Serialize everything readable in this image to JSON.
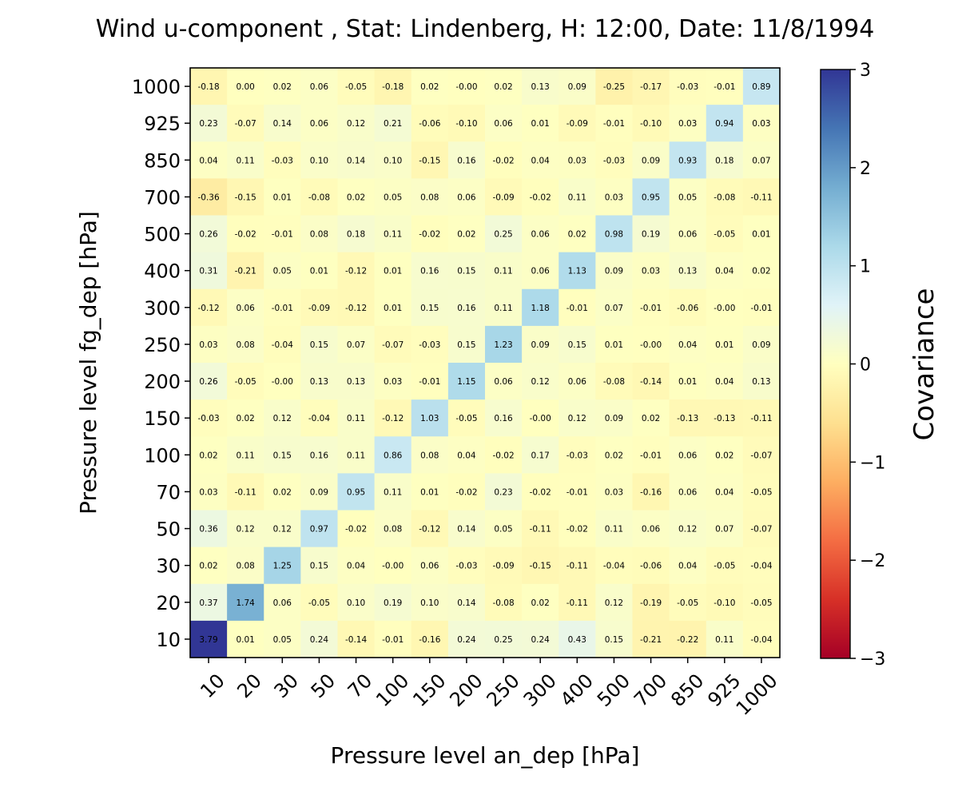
{
  "chart_data": {
    "type": "heatmap",
    "title": "Wind u-component , Stat: Lindenberg, H: 12:00, Date: 11/8/1994",
    "xlabel": "Pressure level an_dep [hPa]",
    "ylabel": "Pressure level fg_dep [hPa]",
    "x_categories": [
      "10",
      "20",
      "30",
      "50",
      "70",
      "100",
      "150",
      "200",
      "250",
      "300",
      "400",
      "500",
      "700",
      "850",
      "925",
      "1000"
    ],
    "y_categories": [
      "1000",
      "925",
      "850",
      "700",
      "500",
      "400",
      "300",
      "250",
      "200",
      "150",
      "100",
      "70",
      "50",
      "30",
      "20",
      "10"
    ],
    "values": [
      [
        "-0.18",
        "0.00",
        "0.02",
        "0.06",
        "-0.05",
        "-0.18",
        "0.02",
        "-0.00",
        "0.02",
        "0.13",
        "0.09",
        "-0.25",
        "-0.17",
        "-0.03",
        "-0.01",
        "0.89"
      ],
      [
        "0.23",
        "-0.07",
        "0.14",
        "0.06",
        "0.12",
        "0.21",
        "-0.06",
        "-0.10",
        "0.06",
        "0.01",
        "-0.09",
        "-0.01",
        "-0.10",
        "0.03",
        "0.94",
        "0.03"
      ],
      [
        "0.04",
        "0.11",
        "-0.03",
        "0.10",
        "0.14",
        "0.10",
        "-0.15",
        "0.16",
        "-0.02",
        "0.04",
        "0.03",
        "-0.03",
        "0.09",
        "0.93",
        "0.18",
        "0.07"
      ],
      [
        "-0.36",
        "-0.15",
        "0.01",
        "-0.08",
        "0.02",
        "0.05",
        "0.08",
        "0.06",
        "-0.09",
        "-0.02",
        "0.11",
        "0.03",
        "0.95",
        "0.05",
        "-0.08",
        "-0.11"
      ],
      [
        "0.26",
        "-0.02",
        "-0.01",
        "0.08",
        "0.18",
        "0.11",
        "-0.02",
        "0.02",
        "0.25",
        "0.06",
        "0.02",
        "0.98",
        "0.19",
        "0.06",
        "-0.05",
        "0.01"
      ],
      [
        "0.31",
        "-0.21",
        "0.05",
        "0.01",
        "-0.12",
        "0.01",
        "0.16",
        "0.15",
        "0.11",
        "0.06",
        "1.13",
        "0.09",
        "0.03",
        "0.13",
        "0.04",
        "0.02"
      ],
      [
        "-0.12",
        "0.06",
        "-0.01",
        "-0.09",
        "-0.12",
        "0.01",
        "0.15",
        "0.16",
        "0.11",
        "1.18",
        "-0.01",
        "0.07",
        "-0.01",
        "-0.06",
        "-0.00",
        "-0.01"
      ],
      [
        "0.03",
        "0.08",
        "-0.04",
        "0.15",
        "0.07",
        "-0.07",
        "-0.03",
        "0.15",
        "1.23",
        "0.09",
        "0.15",
        "0.01",
        "-0.00",
        "0.04",
        "0.01",
        "0.09"
      ],
      [
        "0.26",
        "-0.05",
        "-0.00",
        "0.13",
        "0.13",
        "0.03",
        "-0.01",
        "1.15",
        "0.06",
        "0.12",
        "0.06",
        "-0.08",
        "-0.14",
        "0.01",
        "0.04",
        "0.13"
      ],
      [
        "-0.03",
        "0.02",
        "0.12",
        "-0.04",
        "0.11",
        "-0.12",
        "1.03",
        "-0.05",
        "0.16",
        "-0.00",
        "0.12",
        "0.09",
        "0.02",
        "-0.13",
        "-0.13",
        "-0.11"
      ],
      [
        "0.02",
        "0.11",
        "0.15",
        "0.16",
        "0.11",
        "0.86",
        "0.08",
        "0.04",
        "-0.02",
        "0.17",
        "-0.03",
        "0.02",
        "-0.01",
        "0.06",
        "0.02",
        "-0.07"
      ],
      [
        "0.03",
        "-0.11",
        "0.02",
        "0.09",
        "0.95",
        "0.11",
        "0.01",
        "-0.02",
        "0.23",
        "-0.02",
        "-0.01",
        "0.03",
        "-0.16",
        "0.06",
        "0.04",
        "-0.05"
      ],
      [
        "0.36",
        "0.12",
        "0.12",
        "0.97",
        "-0.02",
        "0.08",
        "-0.12",
        "0.14",
        "0.05",
        "-0.11",
        "-0.02",
        "0.11",
        "0.06",
        "0.12",
        "0.07",
        "-0.07"
      ],
      [
        "0.02",
        "0.08",
        "1.25",
        "0.15",
        "0.04",
        "-0.00",
        "0.06",
        "-0.03",
        "-0.09",
        "-0.15",
        "-0.11",
        "-0.04",
        "-0.06",
        "0.04",
        "-0.05",
        "-0.04"
      ],
      [
        "0.37",
        "1.74",
        "0.06",
        "-0.05",
        "0.10",
        "0.19",
        "0.10",
        "0.14",
        "-0.08",
        "0.02",
        "-0.11",
        "0.12",
        "-0.19",
        "-0.05",
        "-0.10",
        "-0.05"
      ],
      [
        "3.79",
        "0.01",
        "0.05",
        "0.24",
        "-0.14",
        "-0.01",
        "-0.16",
        "0.24",
        "0.25",
        "0.24",
        "0.43",
        "0.15",
        "-0.21",
        "-0.22",
        "0.11",
        "-0.04"
      ]
    ],
    "colormap": "RdYlBu",
    "colormap_stops": [
      "#a50026",
      "#d73027",
      "#f46d43",
      "#fdae61",
      "#fee090",
      "#ffffbf",
      "#e0f3f8",
      "#abd9e9",
      "#74add1",
      "#4575b4",
      "#313695"
    ],
    "vmin": -3,
    "vmax": 3,
    "colorbar": {
      "label": "Covariance",
      "ticks": [
        "3",
        "2",
        "1",
        "0",
        "−1",
        "−2",
        "−3"
      ],
      "tick_values": [
        3,
        2,
        1,
        0,
        -1,
        -2,
        -3
      ]
    },
    "grid": false
  }
}
